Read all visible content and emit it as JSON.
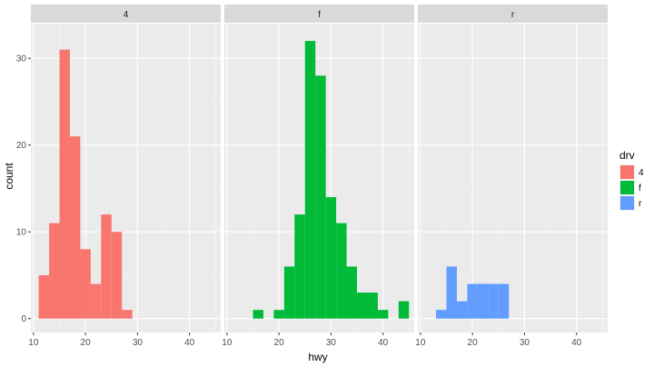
{
  "chart_data": {
    "type": "bar",
    "xlabel": "hwy",
    "ylabel": "count",
    "xlim": [
      9.5,
      46
    ],
    "ylim": [
      -1.6,
      34
    ],
    "x_ticks": [
      10,
      20,
      30,
      40
    ],
    "y_ticks": [
      0,
      10,
      20,
      30
    ],
    "bin_width": 2,
    "grid": true,
    "legend": {
      "title": "drv",
      "placement": "right",
      "items": [
        {
          "label": "4",
          "color": "#F8766D"
        },
        {
          "label": "f",
          "color": "#00BA38"
        },
        {
          "label": "r",
          "color": "#619CFF"
        }
      ]
    },
    "panels": [
      {
        "strip": "4",
        "color": "#F8766D",
        "bins": [
          {
            "x0": 11,
            "x1": 13,
            "count": 5
          },
          {
            "x0": 13,
            "x1": 15,
            "count": 11
          },
          {
            "x0": 15,
            "x1": 17,
            "count": 31
          },
          {
            "x0": 17,
            "x1": 19,
            "count": 21
          },
          {
            "x0": 19,
            "x1": 21,
            "count": 8
          },
          {
            "x0": 21,
            "x1": 23,
            "count": 4
          },
          {
            "x0": 23,
            "x1": 25,
            "count": 12
          },
          {
            "x0": 25,
            "x1": 27,
            "count": 10
          },
          {
            "x0": 27,
            "x1": 29,
            "count": 1
          }
        ]
      },
      {
        "strip": "f",
        "color": "#00BA38",
        "bins": [
          {
            "x0": 15,
            "x1": 17,
            "count": 1
          },
          {
            "x0": 19,
            "x1": 21,
            "count": 1
          },
          {
            "x0": 21,
            "x1": 23,
            "count": 6
          },
          {
            "x0": 23,
            "x1": 25,
            "count": 12
          },
          {
            "x0": 25,
            "x1": 27,
            "count": 32
          },
          {
            "x0": 27,
            "x1": 29,
            "count": 28
          },
          {
            "x0": 29,
            "x1": 31,
            "count": 14
          },
          {
            "x0": 31,
            "x1": 33,
            "count": 11
          },
          {
            "x0": 33,
            "x1": 35,
            "count": 6
          },
          {
            "x0": 35,
            "x1": 37,
            "count": 3
          },
          {
            "x0": 37,
            "x1": 39,
            "count": 3
          },
          {
            "x0": 39,
            "x1": 41,
            "count": 1
          },
          {
            "x0": 43,
            "x1": 45,
            "count": 2
          }
        ]
      },
      {
        "strip": "r",
        "color": "#619CFF",
        "bins": [
          {
            "x0": 13,
            "x1": 15,
            "count": 1
          },
          {
            "x0": 15,
            "x1": 17,
            "count": 6
          },
          {
            "x0": 17,
            "x1": 19,
            "count": 2
          },
          {
            "x0": 19,
            "x1": 21,
            "count": 4
          },
          {
            "x0": 21,
            "x1": 23,
            "count": 4
          },
          {
            "x0": 23,
            "x1": 25,
            "count": 4
          },
          {
            "x0": 25,
            "x1": 27,
            "count": 4
          }
        ]
      }
    ]
  }
}
